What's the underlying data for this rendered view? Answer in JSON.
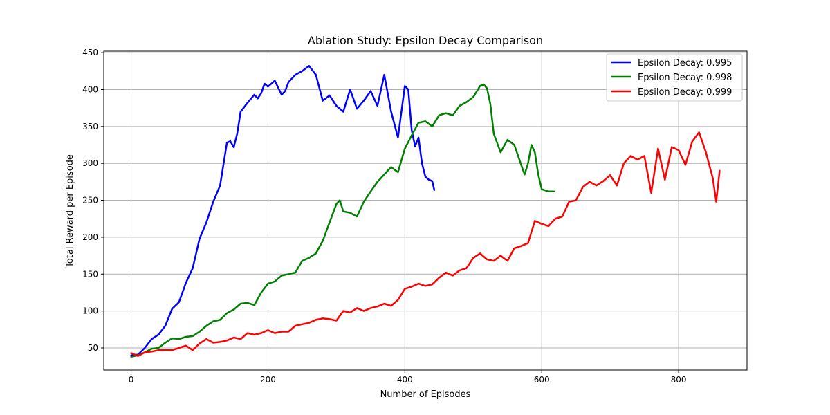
{
  "chart_data": {
    "type": "line",
    "title": "Ablation Study: Epsilon Decay Comparison",
    "xlabel": "Number of Episodes",
    "ylabel": "Total Reward per Episode",
    "xlim": [
      -40,
      900
    ],
    "ylim": [
      20,
      452
    ],
    "xticks": [
      0,
      200,
      400,
      600,
      800
    ],
    "yticks": [
      50,
      100,
      150,
      200,
      250,
      300,
      350,
      400,
      450
    ],
    "grid": true,
    "legend_position": "top-right",
    "series": [
      {
        "name": "Epsilon Decay: 0.995",
        "color": "#0000ff",
        "x": [
          0,
          10,
          20,
          30,
          40,
          50,
          60,
          70,
          80,
          90,
          100,
          110,
          120,
          130,
          140,
          145,
          150,
          155,
          160,
          170,
          180,
          185,
          190,
          195,
          200,
          210,
          220,
          225,
          230,
          240,
          250,
          260,
          270,
          280,
          290,
          300,
          310,
          320,
          330,
          340,
          350,
          360,
          370,
          380,
          390,
          400,
          405,
          410,
          415,
          420,
          425,
          430,
          435,
          440,
          443
        ],
        "y": [
          40,
          41,
          50,
          62,
          68,
          80,
          103,
          112,
          138,
          158,
          198,
          220,
          248,
          270,
          328,
          330,
          322,
          340,
          370,
          382,
          393,
          388,
          395,
          408,
          404,
          412,
          393,
          398,
          410,
          420,
          425,
          432,
          420,
          385,
          392,
          378,
          370,
          400,
          374,
          385,
          398,
          378,
          420,
          370,
          335,
          405,
          400,
          345,
          323,
          335,
          300,
          282,
          278,
          276,
          264
        ]
      },
      {
        "name": "Epsilon Decay: 0.998",
        "color": "#008000",
        "x": [
          0,
          10,
          20,
          30,
          40,
          50,
          60,
          70,
          80,
          90,
          100,
          110,
          120,
          130,
          140,
          150,
          160,
          170,
          180,
          190,
          200,
          210,
          220,
          230,
          240,
          250,
          260,
          270,
          280,
          290,
          300,
          305,
          310,
          320,
          330,
          340,
          350,
          360,
          370,
          380,
          390,
          400,
          410,
          420,
          430,
          440,
          450,
          460,
          470,
          480,
          490,
          500,
          510,
          515,
          520,
          525,
          530,
          540,
          550,
          560,
          570,
          575,
          580,
          585,
          590,
          595,
          600,
          610,
          618
        ],
        "y": [
          38,
          40,
          44,
          49,
          50,
          57,
          63,
          62,
          65,
          66,
          72,
          80,
          86,
          88,
          97,
          102,
          110,
          111,
          108,
          125,
          137,
          140,
          148,
          150,
          152,
          168,
          172,
          178,
          195,
          220,
          245,
          250,
          235,
          233,
          228,
          248,
          262,
          275,
          285,
          295,
          288,
          320,
          338,
          355,
          357,
          350,
          365,
          368,
          365,
          378,
          383,
          390,
          405,
          407,
          402,
          380,
          340,
          315,
          332,
          325,
          298,
          285,
          300,
          325,
          315,
          285,
          265,
          262,
          262
        ]
      },
      {
        "name": "Epsilon Decay: 0.999",
        "color": "#ff0000",
        "x": [
          0,
          10,
          20,
          30,
          40,
          50,
          60,
          70,
          80,
          90,
          100,
          110,
          120,
          130,
          140,
          150,
          160,
          170,
          180,
          190,
          200,
          210,
          220,
          230,
          240,
          250,
          260,
          270,
          280,
          290,
          300,
          310,
          320,
          330,
          340,
          350,
          360,
          370,
          380,
          390,
          400,
          410,
          420,
          430,
          440,
          450,
          460,
          470,
          480,
          490,
          500,
          510,
          520,
          530,
          540,
          550,
          560,
          570,
          580,
          590,
          600,
          610,
          620,
          630,
          640,
          650,
          660,
          670,
          680,
          690,
          700,
          710,
          720,
          730,
          740,
          750,
          760,
          770,
          780,
          790,
          800,
          810,
          820,
          830,
          840,
          850,
          855,
          860
        ],
        "y": [
          43,
          39,
          44,
          45,
          47,
          47,
          47,
          50,
          53,
          47,
          56,
          62,
          57,
          58,
          60,
          64,
          62,
          70,
          68,
          70,
          74,
          70,
          72,
          72,
          80,
          82,
          84,
          88,
          90,
          89,
          87,
          100,
          98,
          104,
          100,
          104,
          106,
          110,
          107,
          115,
          130,
          133,
          137,
          134,
          136,
          145,
          152,
          148,
          155,
          158,
          172,
          178,
          170,
          168,
          175,
          168,
          185,
          188,
          192,
          222,
          218,
          215,
          225,
          228,
          248,
          250,
          268,
          275,
          270,
          276,
          284,
          270,
          300,
          310,
          305,
          310,
          260,
          320,
          278,
          322,
          318,
          298,
          330,
          342,
          315,
          280,
          248,
          290
        ]
      }
    ]
  }
}
